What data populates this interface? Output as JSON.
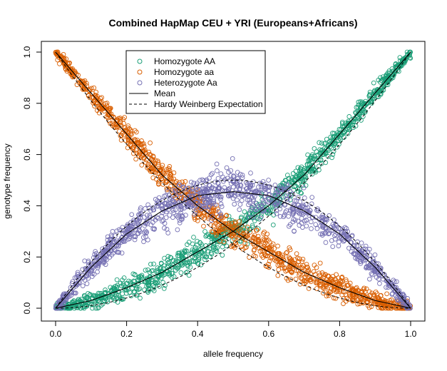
{
  "chart_data": {
    "type": "scatter",
    "title": "Combined HapMap CEU + YRI (Europeans+Africans)",
    "xlabel": "allele frequency",
    "ylabel": "genotype frequency",
    "xlim": [
      0,
      1
    ],
    "ylim": [
      0,
      1
    ],
    "x_ticks": [
      "0.0",
      "0.2",
      "0.4",
      "0.6",
      "0.8",
      "1.0"
    ],
    "y_ticks": [
      "0.0",
      "0.2",
      "0.4",
      "0.6",
      "0.8",
      "1.0"
    ],
    "grid": false,
    "legend_position": "top-left",
    "series": [
      {
        "name": "Homozygote AA",
        "marker": "open-circle",
        "color": "#1b9e77",
        "x": [
          0.0,
          0.05,
          0.1,
          0.15,
          0.2,
          0.25,
          0.3,
          0.35,
          0.4,
          0.45,
          0.5,
          0.55,
          0.6,
          0.65,
          0.7,
          0.75,
          0.8,
          0.85,
          0.9,
          0.95,
          1.0
        ],
        "y": [
          0.0,
          0.01,
          0.03,
          0.055,
          0.08,
          0.11,
          0.14,
          0.18,
          0.22,
          0.26,
          0.3,
          0.35,
          0.4,
          0.46,
          0.52,
          0.6,
          0.68,
          0.76,
          0.84,
          0.92,
          1.0
        ]
      },
      {
        "name": "Homozygote aa",
        "marker": "open-circle",
        "color": "#d95f02",
        "x": [
          0.0,
          0.05,
          0.1,
          0.15,
          0.2,
          0.25,
          0.3,
          0.35,
          0.4,
          0.45,
          0.5,
          0.55,
          0.6,
          0.65,
          0.7,
          0.75,
          0.8,
          0.85,
          0.9,
          0.95,
          1.0
        ],
        "y": [
          1.0,
          0.92,
          0.84,
          0.76,
          0.68,
          0.6,
          0.52,
          0.46,
          0.4,
          0.35,
          0.3,
          0.26,
          0.22,
          0.18,
          0.14,
          0.11,
          0.08,
          0.055,
          0.03,
          0.01,
          0.0
        ]
      },
      {
        "name": "Heterozygote Aa",
        "marker": "open-circle",
        "color": "#7570b3",
        "x": [
          0.0,
          0.05,
          0.1,
          0.15,
          0.2,
          0.25,
          0.3,
          0.35,
          0.4,
          0.45,
          0.5,
          0.55,
          0.6,
          0.65,
          0.7,
          0.75,
          0.8,
          0.85,
          0.9,
          0.95,
          1.0
        ],
        "y": [
          0.0,
          0.08,
          0.16,
          0.23,
          0.29,
          0.34,
          0.38,
          0.41,
          0.44,
          0.45,
          0.46,
          0.45,
          0.44,
          0.41,
          0.38,
          0.34,
          0.29,
          0.23,
          0.16,
          0.08,
          0.0
        ]
      },
      {
        "name": "Mean",
        "style": "solid-line",
        "color": "#000000",
        "curves": [
          {
            "x": [
              0.0,
              0.1,
              0.2,
              0.3,
              0.4,
              0.5,
              0.6,
              0.7,
              0.8,
              0.9,
              1.0
            ],
            "y": [
              0.0,
              0.03,
              0.08,
              0.14,
              0.22,
              0.3,
              0.4,
              0.52,
              0.68,
              0.84,
              1.0
            ]
          },
          {
            "x": [
              0.0,
              0.1,
              0.2,
              0.3,
              0.4,
              0.5,
              0.6,
              0.7,
              0.8,
              0.9,
              1.0
            ],
            "y": [
              1.0,
              0.84,
              0.68,
              0.52,
              0.4,
              0.3,
              0.22,
              0.14,
              0.08,
              0.03,
              0.0
            ]
          },
          {
            "x": [
              0.0,
              0.1,
              0.2,
              0.3,
              0.4,
              0.5,
              0.6,
              0.7,
              0.8,
              0.9,
              1.0
            ],
            "y": [
              0.0,
              0.16,
              0.29,
              0.38,
              0.44,
              0.455,
              0.44,
              0.38,
              0.29,
              0.16,
              0.0
            ]
          }
        ]
      },
      {
        "name": "Hardy Weinberg Expectation",
        "style": "dashed-line",
        "color": "#000000",
        "curves": [
          {
            "function": "p^2"
          },
          {
            "function": "(1-p)^2"
          },
          {
            "function": "2p(1-p)"
          }
        ]
      }
    ]
  }
}
